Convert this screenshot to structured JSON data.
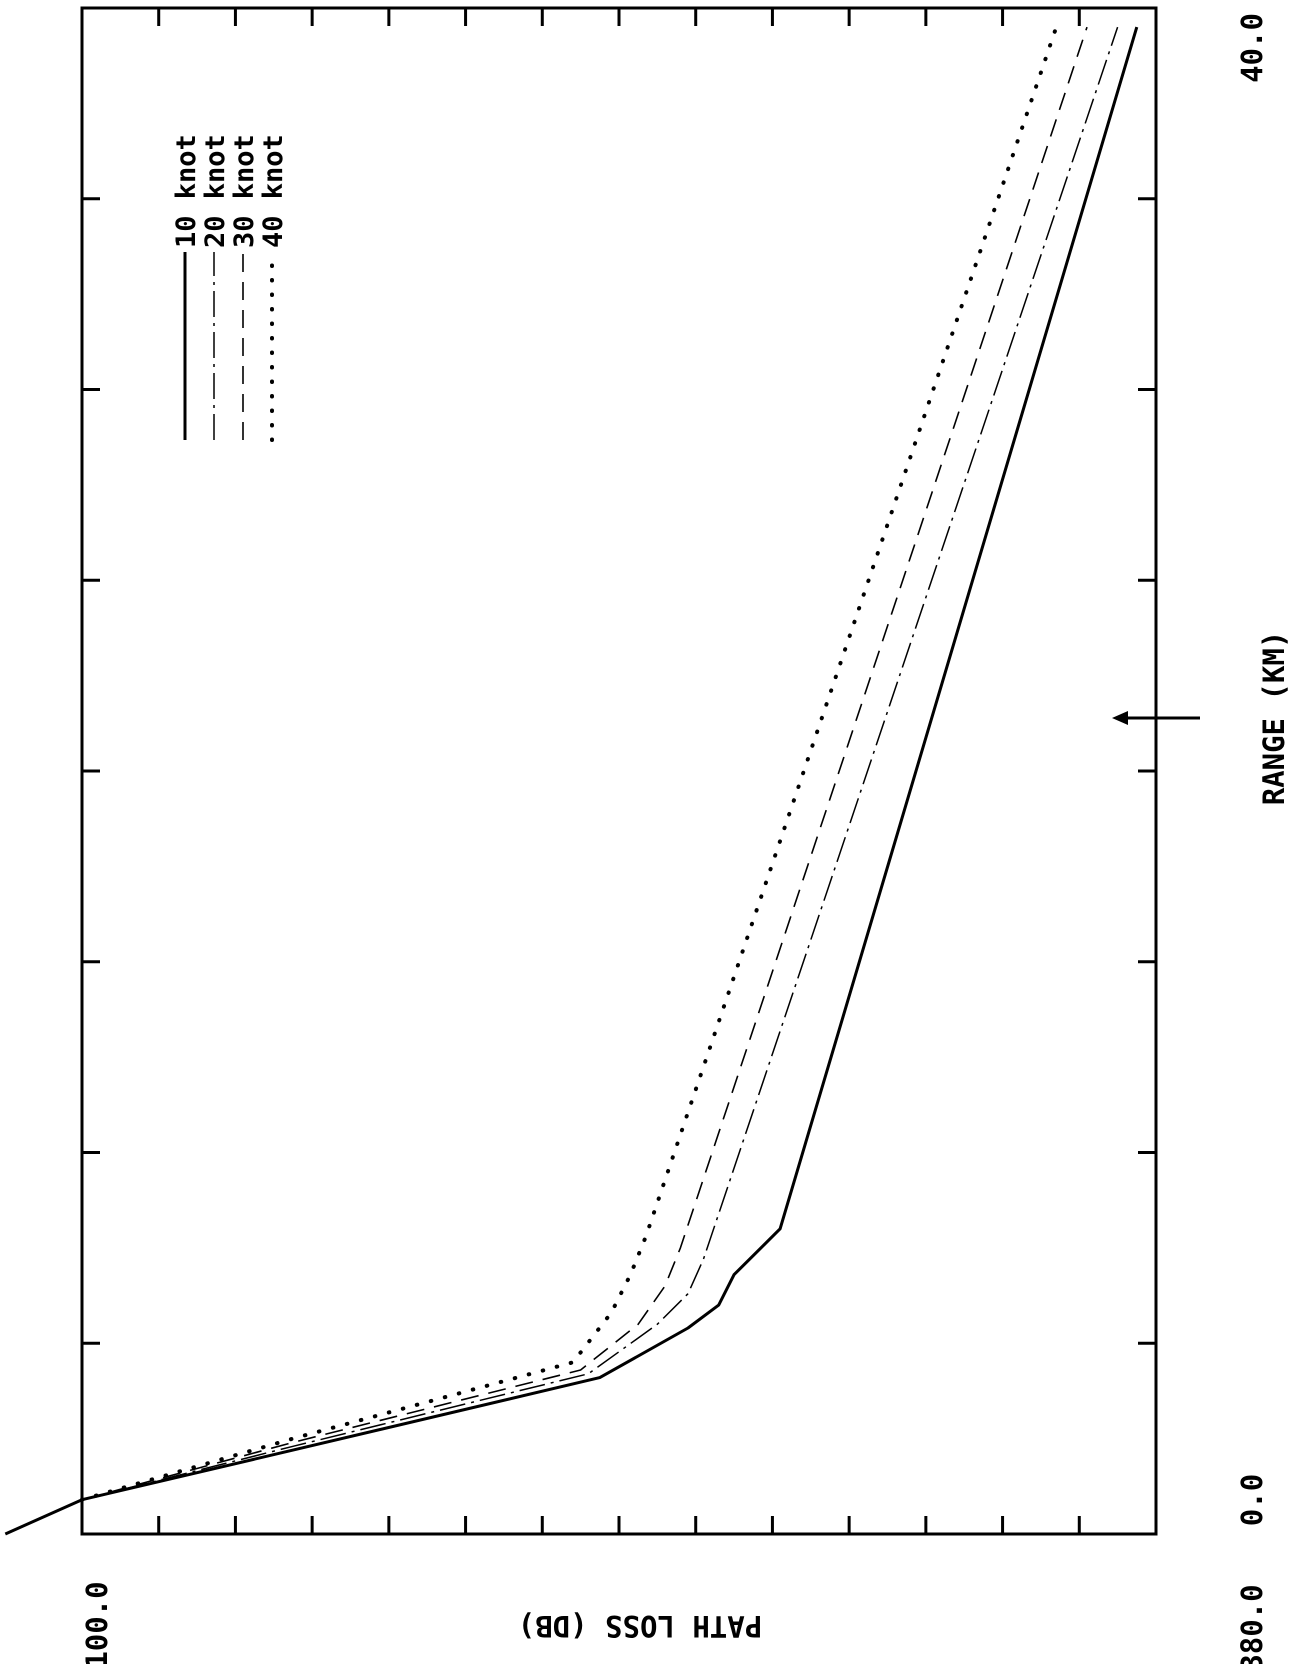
{
  "chart_data": {
    "type": "line",
    "orientation": "rotated-90",
    "title": "",
    "xlabel": "RANGE (KM)",
    "ylabel": "PATH LOSS (DB)",
    "x_tick_labels": [
      "0.0",
      "40.0"
    ],
    "y_tick_labels": [
      "100.0",
      "380.0"
    ],
    "xlim": [
      0,
      40
    ],
    "ylim": [
      100,
      380
    ],
    "x_ticks": [
      0,
      5,
      10,
      15,
      20,
      25,
      30,
      35,
      40
    ],
    "y_ticks": [
      100,
      120,
      140,
      160,
      180,
      200,
      220,
      240,
      260,
      280,
      300,
      320,
      340,
      360,
      380
    ],
    "grid": false,
    "legend_position": "upper-left (rotated)",
    "annotations": [
      {
        "type": "arrow",
        "x": 21.3,
        "direction": "toward plot"
      }
    ],
    "series": [
      {
        "name": "10 knot",
        "style": "solid",
        "x": [
          0.0,
          0.9,
          2.2,
          4.1,
          5.4,
          6.0,
          6.8,
          8.0,
          39.5
        ],
        "y": [
          80,
          100,
          155,
          235,
          258,
          266,
          270,
          282,
          375
        ]
      },
      {
        "name": "20 knot",
        "style": "dashdot",
        "x": [
          0.9,
          2.3,
          4.2,
          5.5,
          6.3,
          7.2,
          39.5
        ],
        "y": [
          100,
          155,
          232,
          250,
          258,
          262,
          370
        ]
      },
      {
        "name": "30 knot",
        "style": "dashed",
        "x": [
          0.9,
          2.4,
          4.3,
          5.5,
          6.5,
          7.5,
          39.5
        ],
        "y": [
          100,
          155,
          230,
          245,
          252,
          256,
          362
        ]
      },
      {
        "name": "40 knot",
        "style": "dotted",
        "x": [
          0.9,
          2.5,
          4.5,
          5.8,
          6.8,
          7.8,
          39.5
        ],
        "y": [
          100,
          155,
          228,
          238,
          243,
          247,
          354
        ]
      }
    ],
    "legend": [
      {
        "label": "10 knot",
        "style": "solid"
      },
      {
        "label": "20 knot",
        "style": "dashdot"
      },
      {
        "label": "30 knot",
        "style": "dashed"
      },
      {
        "label": "40 knot",
        "style": "dotted"
      }
    ]
  }
}
